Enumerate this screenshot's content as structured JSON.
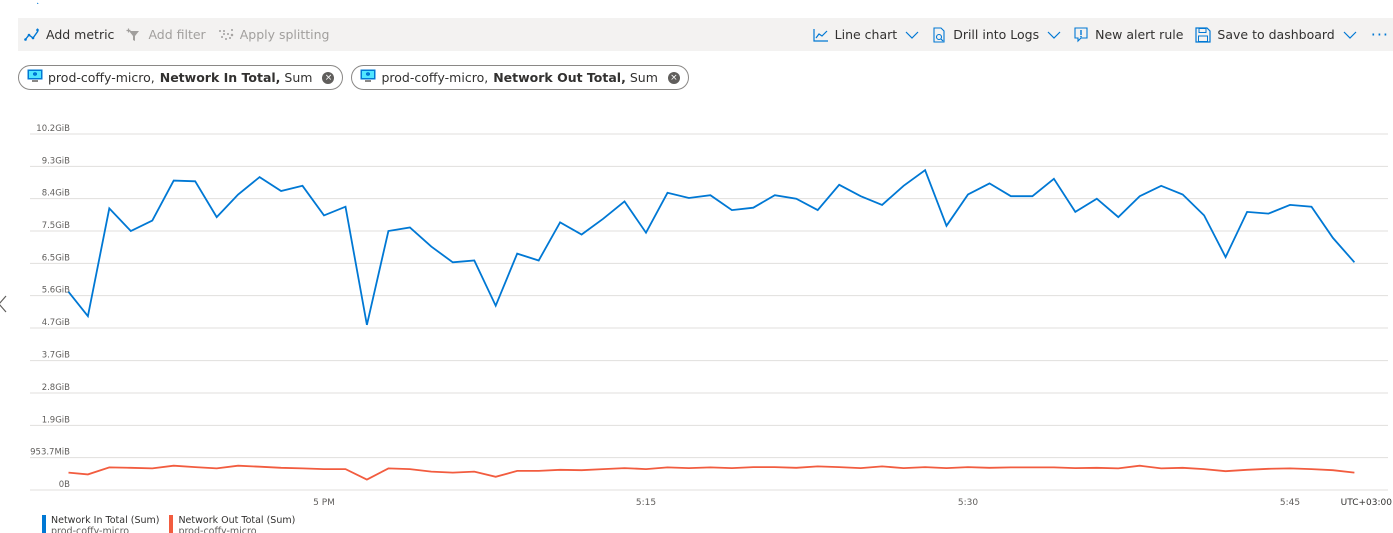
{
  "header": {
    "partial_title": "…",
    "partial_chevron": "›"
  },
  "toolbar": {
    "add_metric": "Add metric",
    "add_filter": "Add filter",
    "apply_splitting": "Apply splitting",
    "line_chart": "Line chart",
    "drill_into_logs": "Drill into Logs",
    "new_alert_rule": "New alert rule",
    "save_to_dashboard": "Save to dashboard",
    "more": "···"
  },
  "pills": [
    {
      "resource": "prod-coffy-micro,",
      "metric": "Network In Total,",
      "aggregation": "Sum",
      "remove": "×"
    },
    {
      "resource": "prod-coffy-micro,",
      "metric": "Network Out Total,",
      "aggregation": "Sum",
      "remove": "×"
    }
  ],
  "colors": {
    "accent": "#0078d4",
    "series_in": "#0078d4",
    "series_out": "#f25c3f",
    "toolbar_bg": "#f3f2f1"
  },
  "chart_data": {
    "type": "line",
    "title": "",
    "xlabel": "",
    "ylabel": "",
    "timezone_label": "UTC+03:00",
    "x_start_minutes": -11,
    "x_step_minutes": 1,
    "x_ticks": [
      {
        "minute": 0,
        "label": "5 PM"
      },
      {
        "minute": 15,
        "label": "5:15"
      },
      {
        "minute": 30,
        "label": "5:30"
      },
      {
        "minute": 45,
        "label": "5:45"
      }
    ],
    "y_ticks": [
      {
        "value": 0,
        "label": "0B"
      },
      {
        "value": 0.9313,
        "label": "953.7MiB"
      },
      {
        "value": 1.86,
        "label": "1.9GiB"
      },
      {
        "value": 2.79,
        "label": "2.8GiB"
      },
      {
        "value": 3.72,
        "label": "3.7GiB"
      },
      {
        "value": 4.66,
        "label": "4.7GiB"
      },
      {
        "value": 5.59,
        "label": "5.6GiB"
      },
      {
        "value": 6.52,
        "label": "6.5GiB"
      },
      {
        "value": 7.45,
        "label": "7.5GiB"
      },
      {
        "value": 8.38,
        "label": "8.4GiB"
      },
      {
        "value": 9.31,
        "label": "9.3GiB"
      },
      {
        "value": 10.24,
        "label": "10.2GiB"
      }
    ],
    "ylim": [
      0,
      10.24
    ],
    "grid": true,
    "legend_position": "bottom-left",
    "series": [
      {
        "name": "Network In Total (Sum)",
        "resource": "prod-coffy-micro",
        "color": "#0078d4",
        "first_point": {
          "minute": -12,
          "value": 5.7
        },
        "values": [
          5.0,
          8.1,
          7.45,
          7.75,
          8.9,
          8.88,
          7.85,
          8.5,
          9.0,
          8.6,
          8.75,
          7.9,
          8.15,
          4.75,
          7.45,
          7.55,
          7.0,
          6.55,
          6.6,
          5.3,
          6.8,
          6.6,
          7.7,
          7.35,
          7.8,
          8.3,
          7.4,
          8.55,
          8.4,
          8.48,
          8.05,
          8.12,
          8.48,
          8.38,
          8.05,
          8.78,
          8.45,
          8.2,
          8.75,
          9.2,
          7.6,
          8.5,
          8.82,
          8.45,
          8.45,
          8.95,
          8.0,
          8.38,
          7.85,
          8.45,
          8.75,
          8.5,
          7.9,
          6.7,
          8.0,
          7.95,
          8.2,
          8.15,
          7.25,
          6.55
        ]
      },
      {
        "name": "Network Out Total (Sum)",
        "resource": "prod-coffy-micro",
        "color": "#f25c3f",
        "first_point": {
          "minute": -12,
          "value": 0.5
        },
        "values": [
          0.45,
          0.65,
          0.64,
          0.62,
          0.7,
          0.66,
          0.62,
          0.7,
          0.67,
          0.64,
          0.62,
          0.6,
          0.6,
          0.3,
          0.62,
          0.6,
          0.53,
          0.5,
          0.53,
          0.38,
          0.55,
          0.55,
          0.58,
          0.57,
          0.6,
          0.63,
          0.6,
          0.65,
          0.63,
          0.65,
          0.63,
          0.66,
          0.66,
          0.64,
          0.68,
          0.66,
          0.63,
          0.68,
          0.63,
          0.66,
          0.63,
          0.66,
          0.64,
          0.65,
          0.65,
          0.65,
          0.63,
          0.64,
          0.62,
          0.7,
          0.62,
          0.64,
          0.6,
          0.54,
          0.58,
          0.61,
          0.62,
          0.6,
          0.57,
          0.5
        ]
      }
    ]
  },
  "legend": [
    {
      "label": "Network In Total (Sum)",
      "sub": "prod-coffy-micro"
    },
    {
      "label": "Network Out Total (Sum)",
      "sub": "prod-coffy-micro"
    }
  ]
}
